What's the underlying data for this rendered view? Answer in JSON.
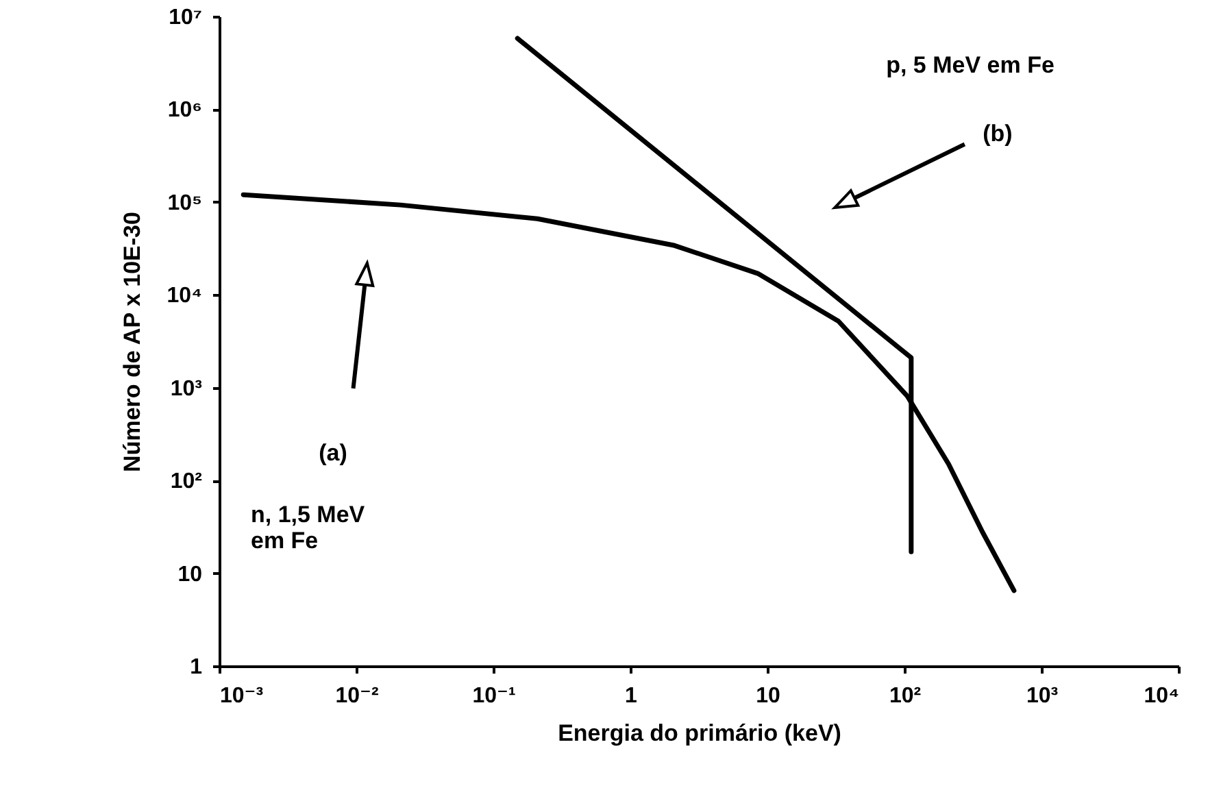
{
  "chart_data": {
    "type": "line",
    "xlabel": "Energia do primário (keV)",
    "ylabel": "Número de AP x 10E-30",
    "log": "xy",
    "xlim": [
      0.001,
      10000
    ],
    "ylim": [
      1,
      10000000
    ],
    "xticks": [
      {
        "value": 0.001,
        "label": "10⁻³"
      },
      {
        "value": 0.01,
        "label": "10⁻²"
      },
      {
        "value": 0.1,
        "label": "10⁻¹"
      },
      1,
      10,
      {
        "value": 100,
        "label": "10²"
      },
      {
        "value": 1000,
        "label": "10³"
      },
      {
        "value": 10000,
        "label": "10⁴"
      }
    ],
    "yticks": [
      1,
      10,
      {
        "value": 100,
        "label": "10²"
      },
      {
        "value": 1000,
        "label": "10³"
      },
      {
        "value": 10000,
        "label": "10⁴"
      },
      {
        "value": 100000,
        "label": "10⁵"
      },
      {
        "value": 1000000,
        "label": "10⁶"
      },
      {
        "value": 10000000,
        "label": "10⁷"
      }
    ],
    "grid": false,
    "marker": "none",
    "line_style": "solid",
    "series": [
      {
        "color": "#000000",
        "x": [
          0.0015,
          0.021,
          0.21,
          2.1,
          8.5,
          33,
          105,
          210,
          370,
          630
        ],
        "values": [
          120000,
          93000,
          66000,
          34000,
          17000,
          5200,
          810,
          150,
          28,
          6.5
        ]
      },
      {
        "color": "#000000",
        "x": [
          0.15,
          112,
          112
        ],
        "values": [
          5800000,
          2100,
          17
        ]
      }
    ],
    "annotations": [
      "p, 5 MeV em Fe",
      "(b)",
      "(a)",
      "n, 1,5 MeV\nem Fe"
    ]
  }
}
